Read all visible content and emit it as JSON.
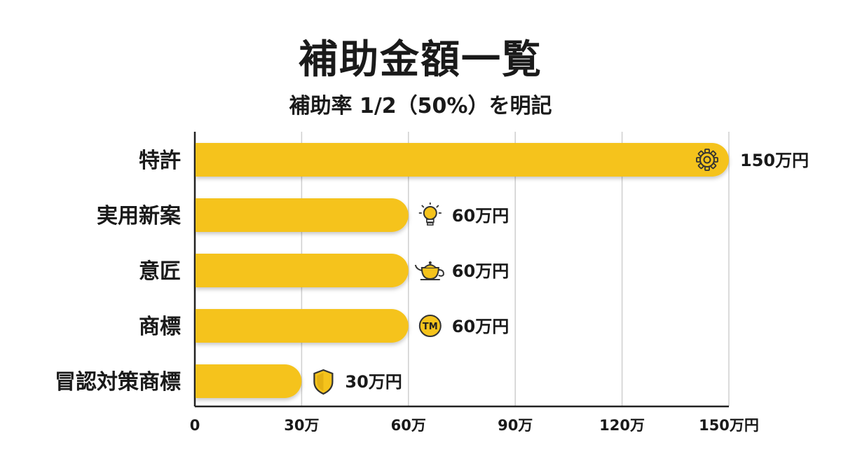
{
  "chart_data": {
    "type": "bar",
    "orientation": "horizontal",
    "title": "補助金額一覧",
    "subtitle": "補助率 1/2（50%）を明記",
    "categories": [
      "特許",
      "実用新案",
      "意匠",
      "商標",
      "冒認対策商標"
    ],
    "values": [
      150,
      60,
      60,
      60,
      30
    ],
    "value_labels": [
      "150万円",
      "60万円",
      "60万円",
      "60万円",
      "30万円"
    ],
    "icons": [
      "gear-icon",
      "lightbulb-icon",
      "teapot-icon",
      "trademark-icon",
      "shield-icon"
    ],
    "xlim": [
      0,
      150
    ],
    "xticks": [
      0,
      30,
      60,
      90,
      120,
      150
    ],
    "xtick_labels": [
      "0",
      "30万",
      "60万",
      "90万",
      "120万",
      "150万円"
    ],
    "grid": true,
    "bar_color": "#F5C31C"
  }
}
